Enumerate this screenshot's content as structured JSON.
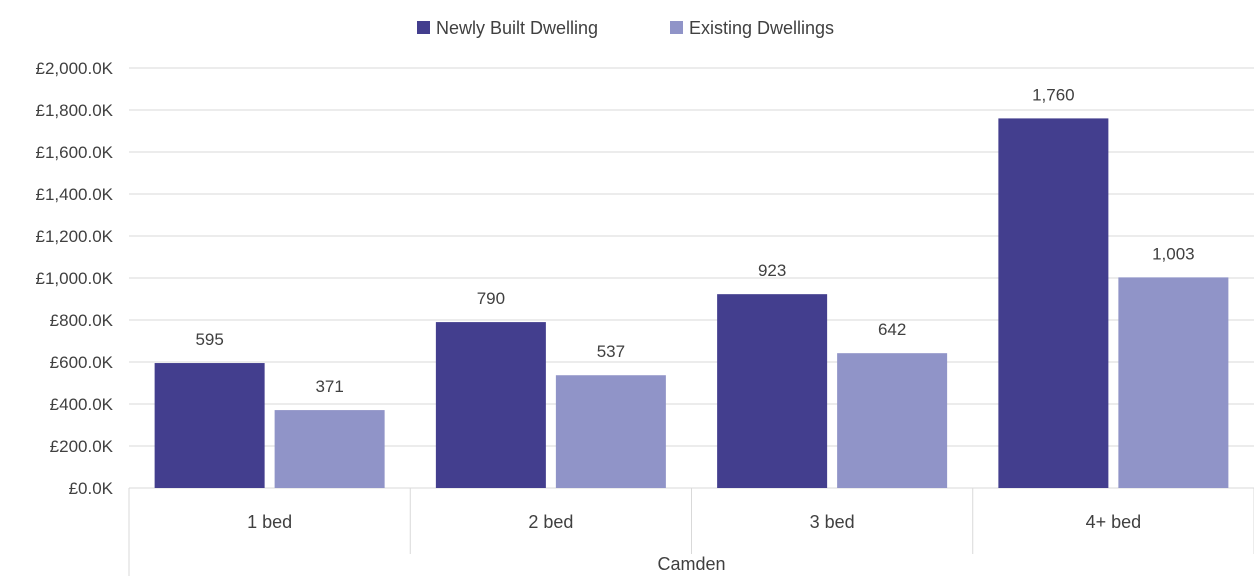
{
  "chart_data": {
    "type": "bar",
    "categories": [
      "1 bed",
      "2 bed",
      "3 bed",
      "4+ bed"
    ],
    "group_label": "Camden",
    "series": [
      {
        "name": "Newly Built Dwelling",
        "color": "#433e8e",
        "values": [
          595,
          790,
          923,
          1760
        ],
        "labels": [
          "595",
          "790",
          "923",
          "1,760"
        ]
      },
      {
        "name": "Existing Dwellings",
        "color": "#9094c8",
        "values": [
          371,
          537,
          642,
          1003
        ],
        "labels": [
          "371",
          "537",
          "642",
          "1,003"
        ]
      }
    ],
    "ylim": [
      0,
      2000
    ],
    "yticks": [
      0,
      200,
      400,
      600,
      800,
      1000,
      1200,
      1400,
      1600,
      1800,
      2000
    ],
    "ytick_labels": [
      "£0.0K",
      "£200.0K",
      "£400.0K",
      "£600.0K",
      "£800.0K",
      "£1,000.0K",
      "£1,200.0K",
      "£1,400.0K",
      "£1,600.0K",
      "£1,800.0K",
      "£2,000.0K"
    ],
    "legend_position": "top-center",
    "grid": true,
    "gridline_color": "#d9d9d9"
  }
}
